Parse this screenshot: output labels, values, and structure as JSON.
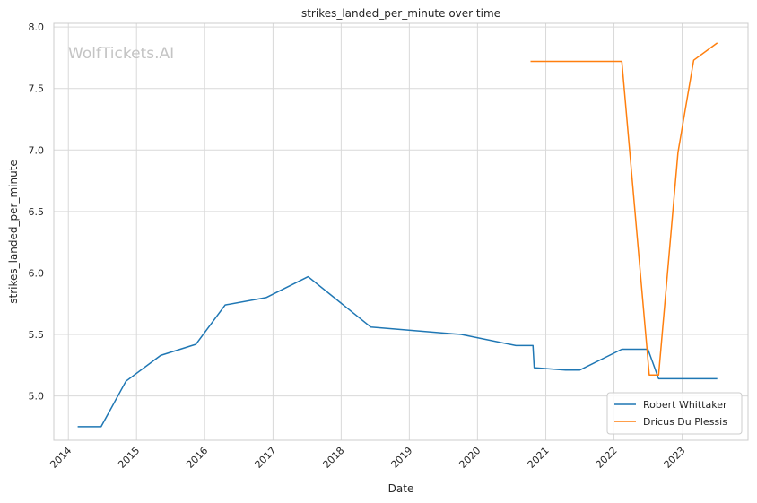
{
  "chart_data": {
    "type": "line",
    "title": "strikes_landed_per_minute over time",
    "xlabel": "Date",
    "ylabel": "strikes_landed_per_minute",
    "watermark": "WolfTickets.AI",
    "x_ticks": [
      "2014",
      "2015",
      "2016",
      "2017",
      "2018",
      "2019",
      "2020",
      "2021",
      "2022",
      "2023"
    ],
    "y_ticks": [
      "5.0",
      "5.5",
      "6.0",
      "6.5",
      "7.0",
      "7.5",
      "8.0"
    ],
    "xlim": [
      "2013-10-15",
      "2023-12-20"
    ],
    "ylim": [
      4.64,
      8.03
    ],
    "grid": true,
    "legend_position": "lower-right",
    "series": [
      {
        "name": "Robert Whittaker",
        "color": "#1f77b4",
        "points": [
          {
            "x": "2014-02-20",
            "y": 4.75
          },
          {
            "x": "2014-06-25",
            "y": 4.75
          },
          {
            "x": "2014-11-05",
            "y": 5.12
          },
          {
            "x": "2015-05-10",
            "y": 5.33
          },
          {
            "x": "2015-11-15",
            "y": 5.42
          },
          {
            "x": "2016-04-20",
            "y": 5.74
          },
          {
            "x": "2016-11-25",
            "y": 5.8
          },
          {
            "x": "2017-07-08",
            "y": 5.97
          },
          {
            "x": "2018-06-09",
            "y": 5.56
          },
          {
            "x": "2019-10-06",
            "y": 5.5
          },
          {
            "x": "2020-07-25",
            "y": 5.41
          },
          {
            "x": "2020-10-24",
            "y": 5.41
          },
          {
            "x": "2020-10-31",
            "y": 5.23
          },
          {
            "x": "2021-04-17",
            "y": 5.21
          },
          {
            "x": "2021-07-01",
            "y": 5.21
          },
          {
            "x": "2022-02-12",
            "y": 5.38
          },
          {
            "x": "2022-07-02",
            "y": 5.38
          },
          {
            "x": "2022-08-28",
            "y": 5.14
          },
          {
            "x": "2023-03-04",
            "y": 5.14
          },
          {
            "x": "2023-07-08",
            "y": 5.14
          }
        ]
      },
      {
        "name": "Dricus Du Plessis",
        "color": "#ff7f0e",
        "points": [
          {
            "x": "2020-10-11",
            "y": 7.72
          },
          {
            "x": "2022-02-12",
            "y": 7.72
          },
          {
            "x": "2022-07-09",
            "y": 5.17
          },
          {
            "x": "2022-08-28",
            "y": 5.17
          },
          {
            "x": "2022-12-10",
            "y": 6.98
          },
          {
            "x": "2023-03-04",
            "y": 7.73
          },
          {
            "x": "2023-07-08",
            "y": 7.87
          }
        ]
      }
    ]
  }
}
